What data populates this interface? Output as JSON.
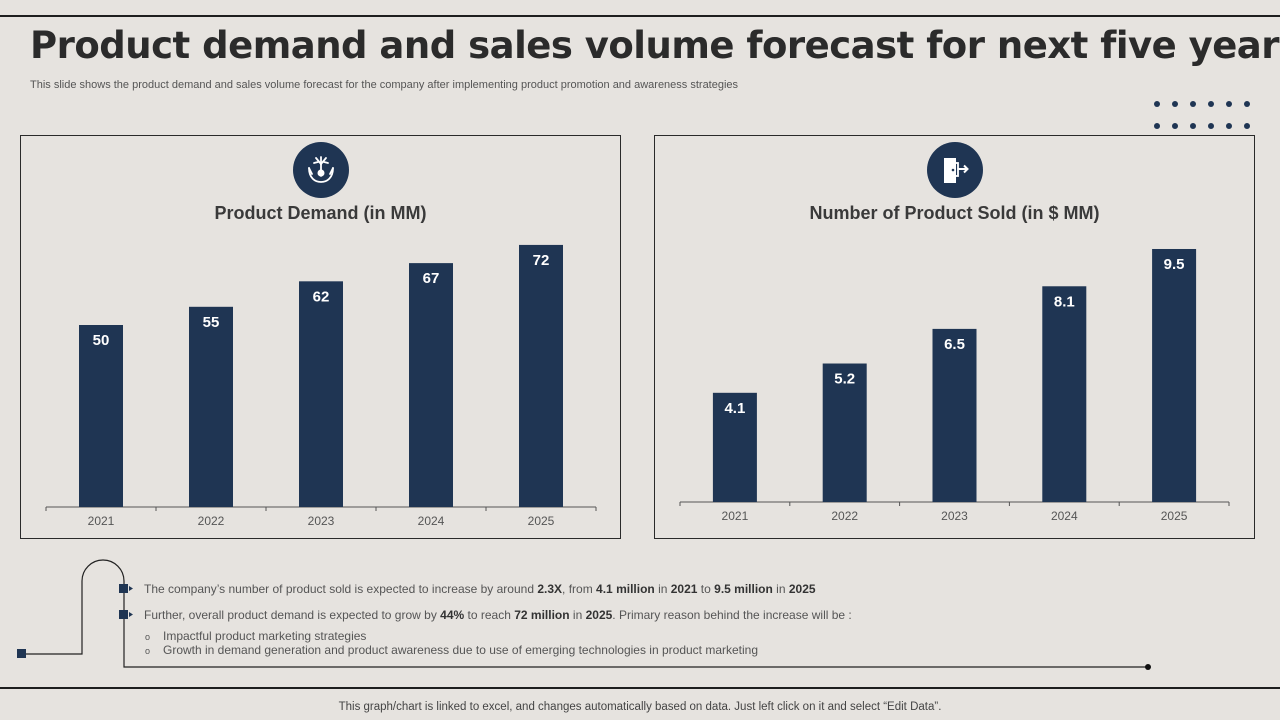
{
  "page": {
    "title": "Product demand and sales volume forecast for next five years",
    "subtitle": "This slide shows the product demand and sales volume forecast for the company after implementing product promotion and awareness strategies",
    "footer": "This graph/chart is linked to excel,  and changes automatically based on data. Just left click on it and select “Edit Data”."
  },
  "colors": {
    "bar": "#1f3553",
    "background": "#e6e3df",
    "text": "#3a3a3a"
  },
  "icons": {
    "left": "hands-holding-plant-icon",
    "right": "door-exit-icon"
  },
  "chart_data": [
    {
      "type": "bar",
      "title": "Product Demand (in MM)",
      "categories": [
        "2021",
        "2022",
        "2023",
        "2024",
        "2025"
      ],
      "values": [
        50,
        55,
        62,
        67,
        72
      ],
      "data_labels": [
        "50",
        "55",
        "62",
        "67",
        "72"
      ],
      "ylim": [
        0,
        75
      ],
      "grid": false,
      "legend": "none"
    },
    {
      "type": "bar",
      "title": "Number of Product Sold (in $ MM)",
      "categories": [
        "2021",
        "2022",
        "2023",
        "2024",
        "2025"
      ],
      "values": [
        4.1,
        5.2,
        6.5,
        8.1,
        9.5
      ],
      "data_labels": [
        "4.1",
        "5.2",
        "6.5",
        "8.1",
        "9.5"
      ],
      "ylim": [
        0,
        9.8
      ],
      "grid": false,
      "legend": "none"
    }
  ],
  "notes": {
    "point1": {
      "t1": "The company’s number of product sold is expected to increase by around ",
      "b1": "2.3X",
      "t2": ", from ",
      "b2": "4.1 million",
      "t3": "  in ",
      "b3": "2021",
      "t4": " to ",
      "b4": "9.5 million",
      "t5": "  in ",
      "b5": "2025"
    },
    "point2": {
      "t1": "Further, overall product demand is expected to grow by ",
      "b1": "44%",
      "t2": " to reach ",
      "b2": "72 million",
      "t3": "  in ",
      "b3": "2025",
      "t4": ". Primary reason behind the increase will be :"
    },
    "sub_bullet": "o",
    "sub_points": [
      "Impactful product marketing strategies",
      "Growth in demand generation and product awareness due to use of emerging technologies in product marketing"
    ]
  }
}
